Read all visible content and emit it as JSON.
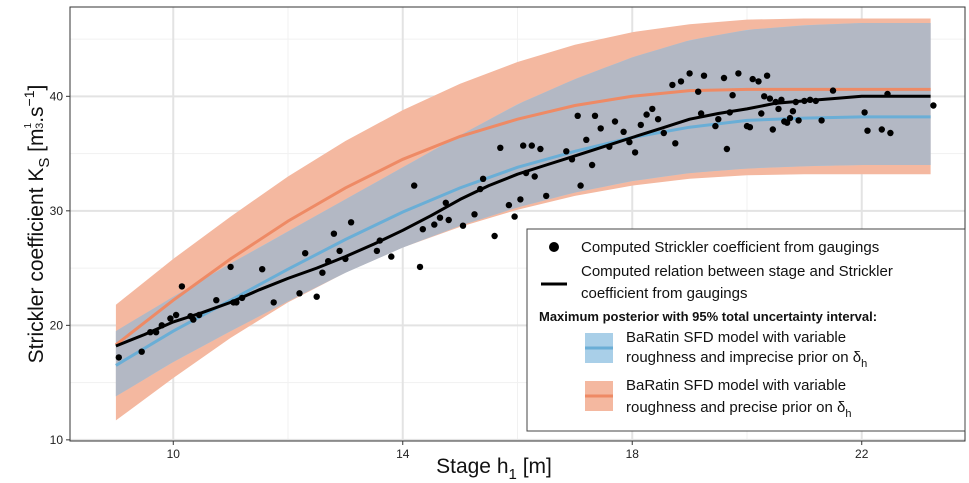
{
  "chart_data": {
    "type": "scatter",
    "xlabel": "Stage h",
    "xlabel_sub": "1",
    "xlabel_unit": "[m]",
    "ylabel": "Strickler coefficient K",
    "ylabel_sub": "S",
    "ylabel_unit_open": "[m",
    "ylabel_unit_frac_num": "1",
    "ylabel_unit_frac_den": "3",
    "ylabel_unit_mid": ".s",
    "ylabel_unit_exp": "−1",
    "ylabel_unit_close": "]",
    "xlim": [
      8.2,
      23.8
    ],
    "ylim": [
      9.9,
      47.8
    ],
    "x_ticks": [
      10,
      14,
      18,
      22
    ],
    "y_ticks": [
      10,
      20,
      30,
      40
    ],
    "grid": true,
    "legend_placement": "bottom-right",
    "legend": {
      "points_label": "Computed Strickler coefficient from gaugings",
      "line_label_1": "Computed relation between stage and Strickler",
      "line_label_2": "coefficient from gaugings",
      "posterior_title": "Maximum posterior with 95% total uncertainty interval:",
      "blue_label_1": "BaRatin SFD model with variable",
      "blue_label_2": "roughness and imprecise prior on δ",
      "blue_sub": "h",
      "orange_label_1": "BaRatin SFD model with variable",
      "orange_label_2": "roughness and precise prior on δ",
      "orange_sub": "h"
    },
    "colors": {
      "blue_band": "#a9cfe8",
      "orange_band": "#f4b8a0",
      "overlap_band": "#b3b8c4",
      "blue_line": "#6aaed6",
      "orange_line": "#ee8a65",
      "black_line": "#000000",
      "points": "#000000",
      "grid": "#e3e3e3"
    },
    "series": [
      {
        "name": "BaRatin SFD model with variable roughness and imprecise prior on δh",
        "kind": "band",
        "x": [
          9,
          10,
          11,
          12,
          13,
          14,
          15,
          16,
          17,
          18,
          19,
          20,
          21,
          22,
          23.2
        ],
        "y": [
          16.5,
          19.5,
          22.2,
          24.9,
          27.5,
          29.9,
          32.0,
          33.8,
          35.2,
          36.4,
          37.3,
          37.9,
          38.1,
          38.2,
          38.2
        ],
        "lower": [
          13.8,
          16.8,
          19.5,
          22.1,
          24.6,
          26.8,
          28.7,
          30.3,
          31.6,
          32.6,
          33.3,
          33.7,
          33.9,
          34.0,
          34.0
        ],
        "upper": [
          19.5,
          22.5,
          25.4,
          28.2,
          31.0,
          33.8,
          36.6,
          39.3,
          41.5,
          43.4,
          44.9,
          45.8,
          46.2,
          46.4,
          46.4
        ]
      },
      {
        "name": "BaRatin SFD model with variable roughness and precise prior on δh",
        "kind": "band",
        "x": [
          9,
          10,
          11,
          12,
          13,
          14,
          15,
          16,
          17,
          18,
          19,
          20,
          21,
          22,
          23.2
        ],
        "y": [
          18.3,
          22.2,
          25.8,
          29.1,
          32.0,
          34.5,
          36.5,
          38.0,
          39.2,
          40.0,
          40.5,
          40.6,
          40.6,
          40.6,
          40.6
        ],
        "lower": [
          11.7,
          15.4,
          18.9,
          22.0,
          24.6,
          26.8,
          28.6,
          30.1,
          31.3,
          32.2,
          32.8,
          33.1,
          33.2,
          33.2,
          33.2
        ],
        "upper": [
          21.8,
          25.8,
          29.5,
          33.0,
          36.1,
          38.8,
          41.1,
          43.0,
          44.5,
          45.6,
          46.3,
          46.7,
          46.8,
          46.8,
          46.8
        ]
      },
      {
        "name": "Computed relation between stage and Strickler coefficient from gaugings",
        "kind": "line",
        "x": [
          9,
          9.5,
          10,
          10.5,
          11,
          11.5,
          12,
          12.5,
          13,
          13.5,
          14,
          14.5,
          15,
          15.5,
          16,
          16.5,
          17,
          17.5,
          18,
          18.5,
          19,
          19.5,
          20,
          20.5,
          21,
          21.5,
          22,
          22.5,
          23.2
        ],
        "y": [
          18.2,
          19.2,
          20.3,
          21.1,
          22.0,
          23.1,
          24.1,
          25.0,
          26.0,
          27.1,
          28.3,
          29.6,
          31.0,
          32.2,
          33.2,
          34.0,
          34.8,
          35.6,
          36.4,
          37.2,
          38.0,
          38.5,
          38.9,
          39.4,
          39.6,
          39.8,
          40.0,
          40.0,
          40.0
        ]
      },
      {
        "name": "Computed Strickler coefficient from gaugings",
        "kind": "points",
        "x": [
          9.05,
          9.45,
          9.6,
          9.7,
          9.8,
          9.95,
          10.05,
          10.15,
          10.3,
          10.35,
          10.45,
          10.75,
          11.0,
          11.05,
          11.1,
          11.2,
          11.55,
          11.75,
          12.2,
          12.3,
          12.5,
          12.6,
          12.7,
          12.8,
          12.9,
          13.0,
          13.1,
          13.55,
          13.6,
          13.8,
          14.2,
          14.3,
          14.35,
          14.55,
          14.65,
          14.75,
          14.8,
          15.05,
          15.25,
          15.35,
          15.4,
          15.6,
          15.7,
          15.85,
          15.95,
          16.05,
          16.1,
          16.15,
          16.25,
          16.3,
          16.4,
          16.5,
          16.85,
          16.95,
          17.05,
          17.1,
          17.2,
          17.3,
          17.35,
          17.45,
          17.6,
          17.7,
          17.85,
          17.95,
          18.05,
          18.15,
          18.25,
          18.35,
          18.45,
          18.55,
          18.7,
          18.75,
          18.85,
          19.0,
          19.15,
          19.2,
          19.25,
          19.45,
          19.5,
          19.6,
          19.65,
          19.7,
          19.75,
          19.85,
          20.0,
          20.05,
          20.1,
          20.2,
          20.25,
          20.3,
          20.35,
          20.4,
          20.45,
          20.5,
          20.55,
          20.6,
          20.65,
          20.7,
          20.75,
          20.8,
          20.85,
          20.9,
          21.0,
          21.1,
          21.2,
          21.3,
          21.5,
          22.05,
          22.1,
          22.35,
          22.45,
          22.5,
          23.25
        ],
        "y": [
          17.2,
          17.7,
          19.4,
          19.4,
          20.0,
          20.6,
          20.9,
          23.4,
          20.8,
          20.5,
          20.9,
          22.2,
          25.1,
          22.0,
          22.0,
          22.4,
          24.9,
          22.0,
          22.8,
          26.3,
          22.5,
          24.6,
          25.6,
          28.0,
          26.5,
          25.8,
          29.0,
          26.5,
          27.4,
          26.0,
          32.2,
          25.1,
          28.4,
          28.8,
          29.4,
          30.7,
          29.2,
          28.7,
          29.7,
          31.9,
          32.8,
          27.8,
          35.5,
          30.5,
          29.5,
          31.0,
          35.7,
          33.3,
          35.7,
          33.0,
          35.4,
          31.3,
          35.2,
          34.5,
          38.3,
          32.2,
          36.2,
          34.0,
          38.3,
          37.2,
          35.6,
          37.8,
          36.9,
          36.0,
          35.1,
          37.5,
          38.4,
          38.9,
          38.0,
          36.8,
          41.0,
          35.9,
          41.3,
          42.0,
          40.4,
          38.5,
          41.8,
          37.4,
          38.0,
          41.6,
          35.4,
          38.6,
          40.1,
          42.0,
          37.4,
          37.3,
          41.5,
          41.3,
          38.5,
          40.0,
          41.8,
          39.8,
          37.1,
          39.5,
          38.9,
          39.7,
          37.8,
          37.7,
          38.1,
          38.7,
          39.5,
          37.9,
          39.6,
          39.7,
          39.6,
          37.9,
          40.5,
          38.6,
          37.0,
          37.1,
          40.2,
          36.8,
          39.2
        ]
      }
    ]
  }
}
